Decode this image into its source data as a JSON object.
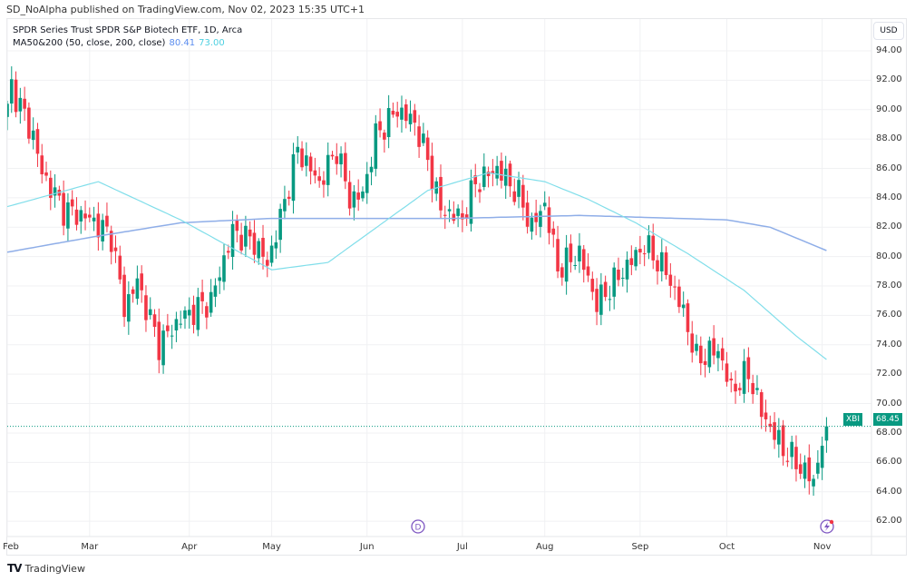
{
  "publisher": "SD_NoAlpha published on TradingView.com, Nov 02, 2023 15:35 UTC+1",
  "legend": {
    "title": "SPDR Series Trust SPDR S&P Biotech ETF, 1D, Arca",
    "indicator": "MA50&200 (50, close, 200, close)",
    "ma200_value": "80.41",
    "ma50_value": "73.00"
  },
  "currency": "USD",
  "ticker": "XBI",
  "last_price": "68.45",
  "footer": "TradingView",
  "markers": {
    "dividend": "D"
  },
  "colors": {
    "up": "#089981",
    "down": "#f23645",
    "ma50": "#80deea",
    "ma200": "#8faee8"
  },
  "chart_data": {
    "type": "candlestick",
    "title": "SPDR Series Trust SPDR S&P Biotech ETF, 1D, Arca",
    "ylim": [
      61,
      95
    ],
    "y_ticks": [
      "94.00",
      "92.00",
      "90.00",
      "88.00",
      "86.00",
      "84.00",
      "82.00",
      "80.00",
      "78.00",
      "76.00",
      "74.00",
      "72.00",
      "70.00",
      "68.00",
      "66.00",
      "64.00",
      "62.00"
    ],
    "x_ticks": [
      {
        "label": "Feb",
        "day": 0
      },
      {
        "label": "Mar",
        "day": 19
      },
      {
        "label": "Apr",
        "day": 42
      },
      {
        "label": "May",
        "day": 61
      },
      {
        "label": "Jun",
        "day": 83
      },
      {
        "label": "Jul",
        "day": 105
      },
      {
        "label": "Aug",
        "day": 124
      },
      {
        "label": "Sep",
        "day": 146
      },
      {
        "label": "Oct",
        "day": 166
      },
      {
        "label": "Nov",
        "day": 188
      }
    ],
    "close_keypoints": [
      [
        0,
        90
      ],
      [
        1,
        91.6
      ],
      [
        6,
        88.2
      ],
      [
        8,
        85.7
      ],
      [
        13,
        83.2
      ],
      [
        19,
        82.6
      ],
      [
        24,
        81.4
      ],
      [
        27,
        76.5
      ],
      [
        30,
        78.3
      ],
      [
        35,
        74
      ],
      [
        40,
        75.8
      ],
      [
        47,
        77
      ],
      [
        52,
        81.7
      ],
      [
        57,
        81
      ],
      [
        60,
        79.5
      ],
      [
        63,
        82.6
      ],
      [
        67,
        87.3
      ],
      [
        72,
        85
      ],
      [
        76,
        87.3
      ],
      [
        79,
        83.9
      ],
      [
        82,
        84.2
      ],
      [
        85,
        88.2
      ],
      [
        90,
        90
      ],
      [
        94,
        89.1
      ],
      [
        97,
        86.6
      ],
      [
        100,
        83.2
      ],
      [
        105,
        82.6
      ],
      [
        108,
        85
      ],
      [
        113,
        86
      ],
      [
        118,
        84.2
      ],
      [
        121,
        82
      ],
      [
        124,
        83.6
      ],
      [
        127,
        79.2
      ],
      [
        132,
        80.2
      ],
      [
        136,
        76.8
      ],
      [
        142,
        79
      ],
      [
        147,
        80.8
      ],
      [
        152,
        79
      ],
      [
        156,
        76.2
      ],
      [
        159,
        73
      ],
      [
        164,
        73.7
      ],
      [
        167,
        70.9
      ],
      [
        171,
        72.1
      ],
      [
        174,
        69.4
      ],
      [
        179,
        66.9
      ],
      [
        182,
        66
      ],
      [
        186,
        64.7
      ],
      [
        188,
        67.5
      ],
      [
        189,
        68.45
      ]
    ],
    "ma50_keypoints": [
      [
        0,
        83.4
      ],
      [
        21,
        85.1
      ],
      [
        40,
        82.5
      ],
      [
        61,
        79.1
      ],
      [
        74,
        79.6
      ],
      [
        97,
        84.5
      ],
      [
        111,
        85.7
      ],
      [
        124,
        85.1
      ],
      [
        134,
        83.9
      ],
      [
        145,
        82.3
      ],
      [
        157,
        80.2
      ],
      [
        170,
        77.7
      ],
      [
        182,
        74.6
      ],
      [
        189,
        73.0
      ]
    ],
    "ma200_keypoints": [
      [
        0,
        80.3
      ],
      [
        19,
        81.3
      ],
      [
        40,
        82.3
      ],
      [
        61,
        82.6
      ],
      [
        103,
        82.6
      ],
      [
        132,
        82.8
      ],
      [
        166,
        82.5
      ],
      [
        176,
        82.0
      ],
      [
        189,
        80.41
      ]
    ]
  }
}
